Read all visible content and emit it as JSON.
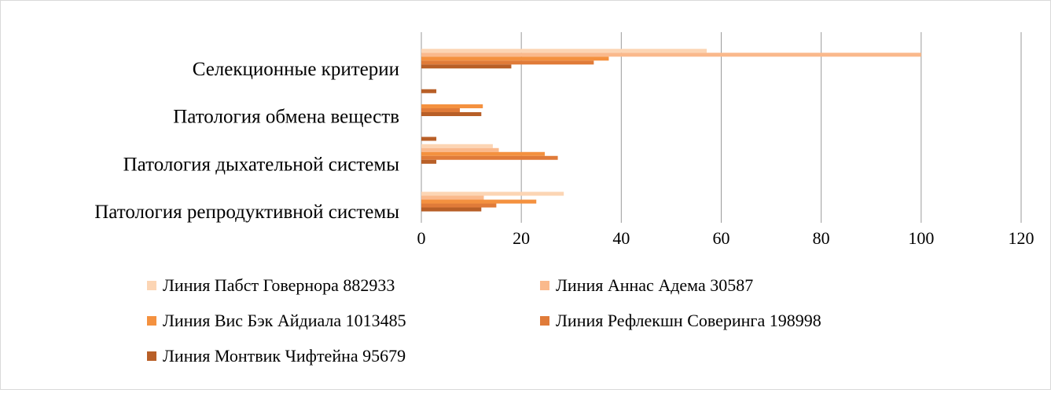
{
  "chart_data": {
    "type": "bar",
    "orientation": "horizontal",
    "title": "",
    "xlabel": "",
    "ylabel": "",
    "xlim": [
      0,
      120
    ],
    "x_ticks": [
      0,
      20,
      40,
      60,
      80,
      100,
      120
    ],
    "grid": true,
    "legend_position": "bottom",
    "categories": [
      "Патология репродуктивной системы",
      "Патология дыхательной системы",
      "Патология обмена веществ",
      "Селекционные критерии"
    ],
    "series": [
      {
        "name": "Линия Пабст Говернора 882933",
        "color": "#fcd5b4",
        "values": [
          28.5,
          14.3,
          0,
          57.1
        ]
      },
      {
        "name": "Линия Аннас Адема 30587",
        "color": "#fab98c",
        "values": [
          12.5,
          15.5,
          0,
          100
        ]
      },
      {
        "name": "Линия Вис Бэк Айдиала 1013485",
        "color": "#f4913f",
        "values": [
          23.0,
          24.7,
          12.3,
          37.5
        ]
      },
      {
        "name": "Линия Рефлекшн Соверинга 198998",
        "color": "#e07b39",
        "values": [
          15.0,
          27.3,
          7.7,
          34.5
        ]
      },
      {
        "name": "Линия Монтвик Чифтейна 95679",
        "color": "#b85f27",
        "values": [
          12.0,
          3.0,
          12.0,
          18.0
        ]
      }
    ],
    "extra_bars": [
      {
        "category_index": 1,
        "series_index": 4,
        "value": 3.0,
        "note": "between rows"
      },
      {
        "category_index": 2,
        "series_index": 4,
        "value": 3.0,
        "note": "between rows"
      }
    ]
  }
}
